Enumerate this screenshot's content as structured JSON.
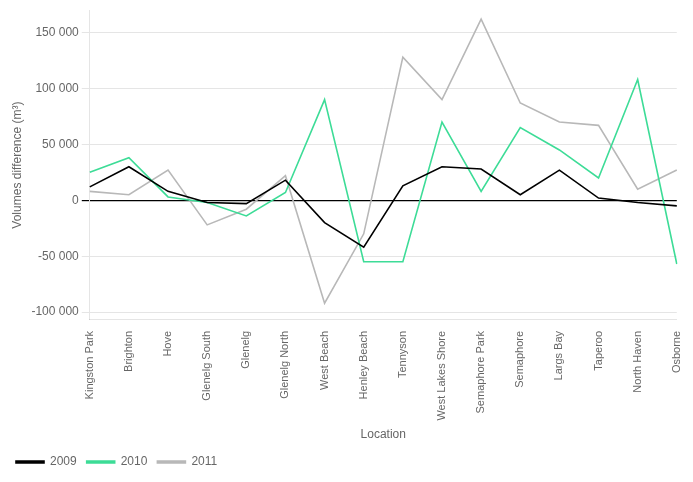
{
  "chart_data": {
    "type": "line",
    "xlabel": "Location",
    "ylabel": "Volumes difference (m³)",
    "categories": [
      "Kingston Park",
      "Brighton",
      "Hove",
      "Glenelg South",
      "Glenelg",
      "Glenelg North",
      "West Beach",
      "Henley Beach",
      "Tennyson",
      "West Lakes Shore",
      "Semaphore Park",
      "Semaphore",
      "Largs Bay",
      "Taperoo",
      "North Haven",
      "Osborne"
    ],
    "series": [
      {
        "name": "2009",
        "color": "#000000",
        "values": [
          12000,
          30000,
          8000,
          -2000,
          -3000,
          18000,
          -20000,
          -42000,
          13000,
          30000,
          28000,
          5000,
          27000,
          2000,
          -2000,
          -5000
        ]
      },
      {
        "name": "2010",
        "color": "#3ddc97",
        "values": [
          25000,
          38000,
          3000,
          -2000,
          -14000,
          7000,
          90000,
          -55000,
          -55000,
          70000,
          8000,
          65000,
          45000,
          20000,
          108000,
          -57000
        ]
      },
      {
        "name": "2011",
        "color": "#b8b8b8",
        "values": [
          8000,
          5000,
          27000,
          -22000,
          -8000,
          22000,
          -92000,
          -30000,
          128000,
          90000,
          162000,
          87000,
          70000,
          67000,
          10000,
          27000
        ]
      }
    ],
    "ylim": [
      -107000,
      170000
    ],
    "yticks": [
      {
        "value": -100000,
        "label": "-100 000"
      },
      {
        "value": -50000,
        "label": "-50 000"
      },
      0,
      {
        "value": 50000,
        "label": "50 000"
      },
      {
        "value": 100000,
        "label": "100 000"
      },
      {
        "value": 150000,
        "label": "150 000"
      }
    ],
    "grid": true,
    "legend": "bottom"
  }
}
